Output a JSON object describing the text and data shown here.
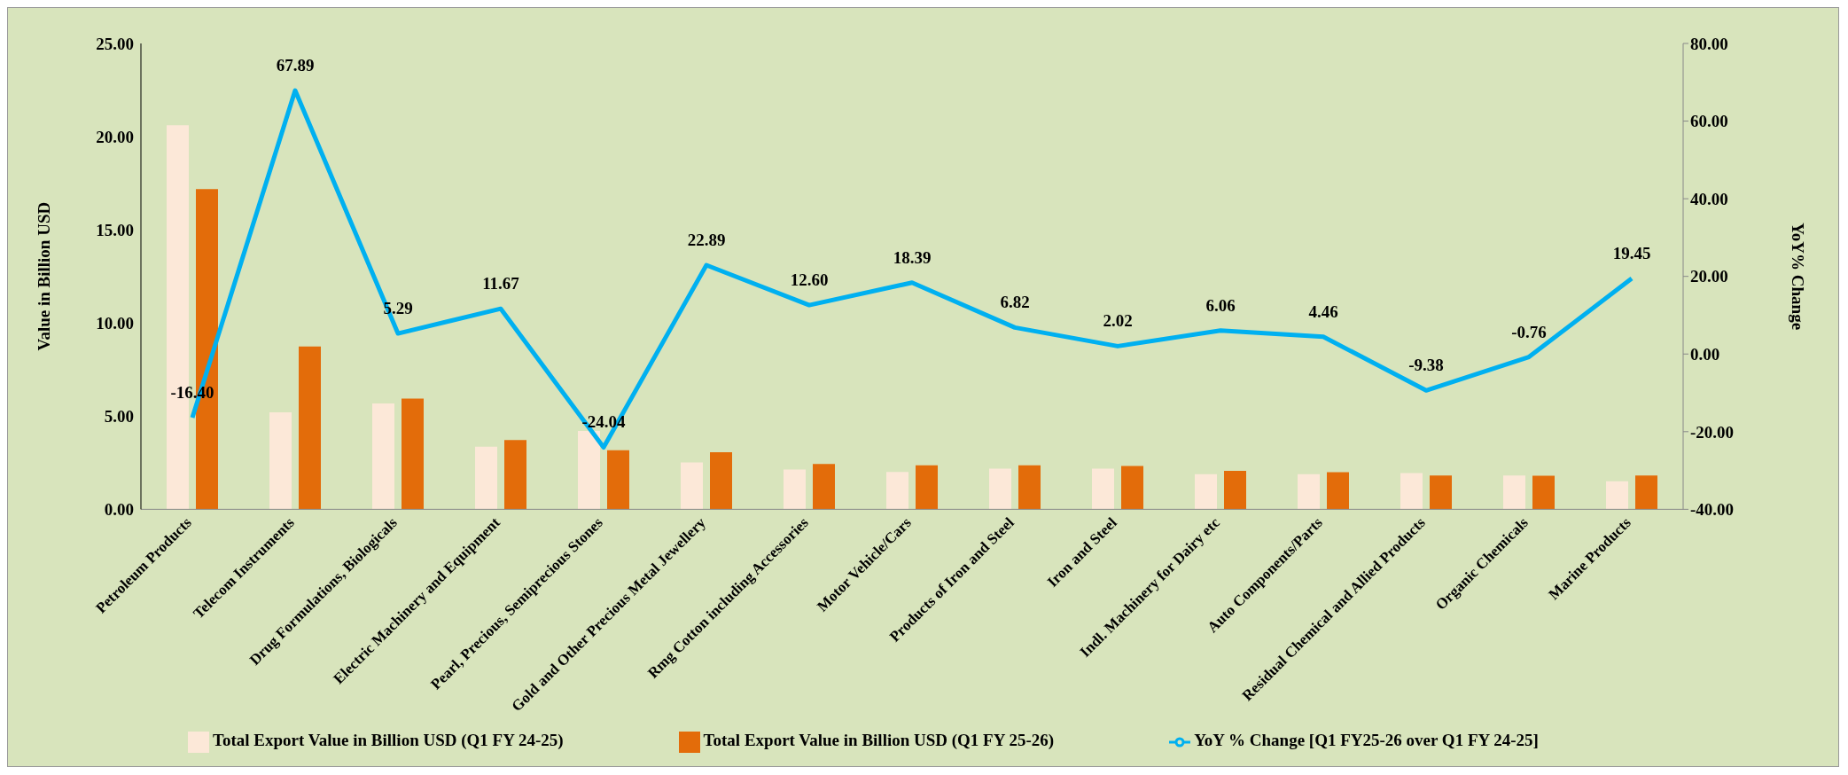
{
  "chart_data": {
    "type": "bar",
    "categories": [
      "Petroleum Products",
      "Telecom Instruments",
      "Drug Formulations, Biologicals",
      "Electric Machinery and Equipment",
      "Pearl, Precious, Semiprecious Stones",
      "Gold and Other Precious Metal Jewellery",
      "Rmg Cotton including Accessories",
      "Motor Vehicle/Cars",
      "Products of Iron and Steel",
      "Iron and Steel",
      "Indl. Machinery for Dairy etc",
      "Auto Components/Parts",
      "Residual Chemical and Allied Products",
      "Organic Chemicals",
      "Marine Products"
    ],
    "series": [
      {
        "name": "Total Export Value in Billion USD (Q1 FY 24-25)",
        "color": "#fce8d8",
        "values": [
          20.61,
          5.2,
          5.68,
          3.36,
          4.2,
          2.51,
          2.14,
          2.0,
          2.18,
          2.18,
          1.88,
          1.88,
          1.95,
          1.81,
          1.51
        ]
      },
      {
        "name": "Total Export Value in Billion USD (Q1 FY 25-26)",
        "color": "#e36c0a",
        "values": [
          17.18,
          8.74,
          5.94,
          3.72,
          3.17,
          3.06,
          2.43,
          2.36,
          2.36,
          2.32,
          2.06,
          1.99,
          1.81,
          1.8,
          1.81
        ]
      },
      {
        "name": "YoY % Change [Q1 FY25-26 over Q1 FY 24-25]",
        "type": "line",
        "axis": "y2",
        "color": "#00b0f0",
        "values": [
          -16.4,
          67.89,
          5.29,
          11.67,
          -24.04,
          22.89,
          12.6,
          18.39,
          6.82,
          2.02,
          6.06,
          4.46,
          -9.38,
          -0.76,
          19.45
        ],
        "value_labels": [
          "-16.40",
          "67.89",
          "5.29",
          "11.67",
          "-24.04",
          "22.89",
          "12.60",
          "18.39",
          "6.82",
          "2.02",
          "6.06",
          "4.46",
          "-9.38",
          "-0.76",
          "19.45"
        ]
      }
    ],
    "ylabel": "Value in Billion USD",
    "y2label": "YoY% Change",
    "ylim": [
      0,
      25
    ],
    "yticks": [
      {
        "value": 0,
        "label": "0.00"
      },
      {
        "value": 5,
        "label": "5.00"
      },
      {
        "value": 10,
        "label": "10.00"
      },
      {
        "value": 15,
        "label": "15.00"
      },
      {
        "value": 20,
        "label": "20.00"
      },
      {
        "value": 25,
        "label": "25.00"
      }
    ],
    "y2lim": [
      -40,
      80
    ],
    "y2ticks": [
      {
        "value": -40,
        "label": "-40.00"
      },
      {
        "value": -20,
        "label": "-20.00"
      },
      {
        "value": 0,
        "label": "0.00"
      },
      {
        "value": 20,
        "label": "20.00"
      },
      {
        "value": 40,
        "label": "40.00"
      },
      {
        "value": 60,
        "label": "60.00"
      },
      {
        "value": 80,
        "label": "80.00"
      }
    ],
    "legend": "bottom",
    "grid": false,
    "marker": "none"
  }
}
